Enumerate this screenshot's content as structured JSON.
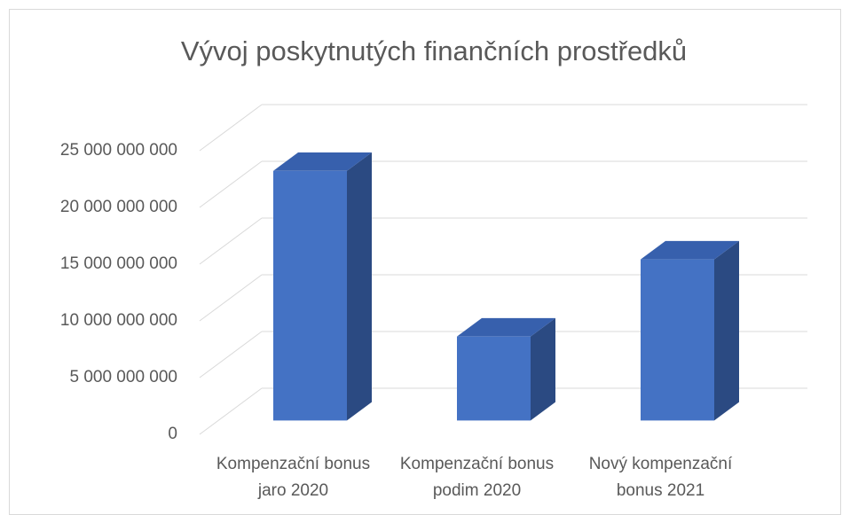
{
  "chart_data": {
    "type": "bar3d",
    "title": "Vývoj poskytnutých finančních prostředků",
    "categories": [
      "Kompenzační bonus jaro 2020",
      "Kompenzační bonus podim 2020",
      "Nový kompenzační bonus 2021"
    ],
    "values": [
      22000000000,
      7400000000,
      14200000000
    ],
    "color": "#4472c4",
    "side_color": "#2b4a82",
    "top_color": "#3760ad",
    "ylim": [
      0,
      25000000000
    ],
    "yticks": [
      0,
      {
        "value": 5000000000,
        "label": "5 000 000 000"
      },
      {
        "value": 10000000000,
        "label": "10 000 000 000"
      },
      {
        "value": 15000000000,
        "label": "15 000 000 000"
      },
      {
        "value": 20000000000,
        "label": "20 000 000 000"
      },
      {
        "value": 25000000000,
        "label": "25 000 000 000"
      }
    ],
    "grid": true
  }
}
